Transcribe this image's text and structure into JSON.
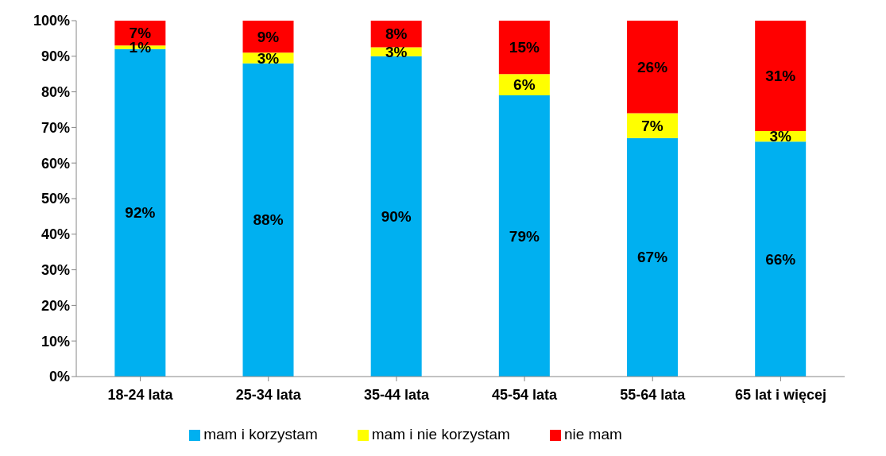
{
  "chart_data": {
    "type": "bar",
    "stacked": true,
    "categories": [
      "18-24 lata",
      "25-34 lata",
      "35-44 lata",
      "45-54 lata",
      "55-64 lata",
      "65 lat i więcej"
    ],
    "series": [
      {
        "name": "mam i korzystam",
        "color": "#00b0f0",
        "values": [
          92,
          88,
          90,
          79,
          67,
          66
        ],
        "value_labels": [
          "92%",
          "88%",
          "90%",
          "79%",
          "67%",
          "66%"
        ]
      },
      {
        "name": "mam i nie korzystam",
        "color": "#ffff00",
        "values": [
          1,
          3,
          2.5,
          6,
          7,
          3
        ],
        "value_labels": [
          "1%",
          "3%",
          "3%",
          "6%",
          "7%",
          "3%"
        ]
      },
      {
        "name": "nie mam",
        "color": "#ff0000",
        "values": [
          7,
          9,
          7.5,
          15,
          26,
          31
        ],
        "value_labels": [
          "7%",
          "9%",
          "8%",
          "15%",
          "26%",
          "31%"
        ]
      }
    ],
    "ylim": [
      0,
      100
    ],
    "yticks": [
      {
        "value": 0,
        "label": "0%"
      },
      {
        "value": 10,
        "label": "10%"
      },
      {
        "value": 20,
        "label": "20%"
      },
      {
        "value": 30,
        "label": "30%"
      },
      {
        "value": 40,
        "label": "40%"
      },
      {
        "value": 50,
        "label": "50%"
      },
      {
        "value": 60,
        "label": "60%"
      },
      {
        "value": 70,
        "label": "70%"
      },
      {
        "value": 80,
        "label": "80%"
      },
      {
        "value": 90,
        "label": "90%"
      },
      {
        "value": 100,
        "label": "100%"
      }
    ],
    "grid": false,
    "legend": "bottom"
  }
}
